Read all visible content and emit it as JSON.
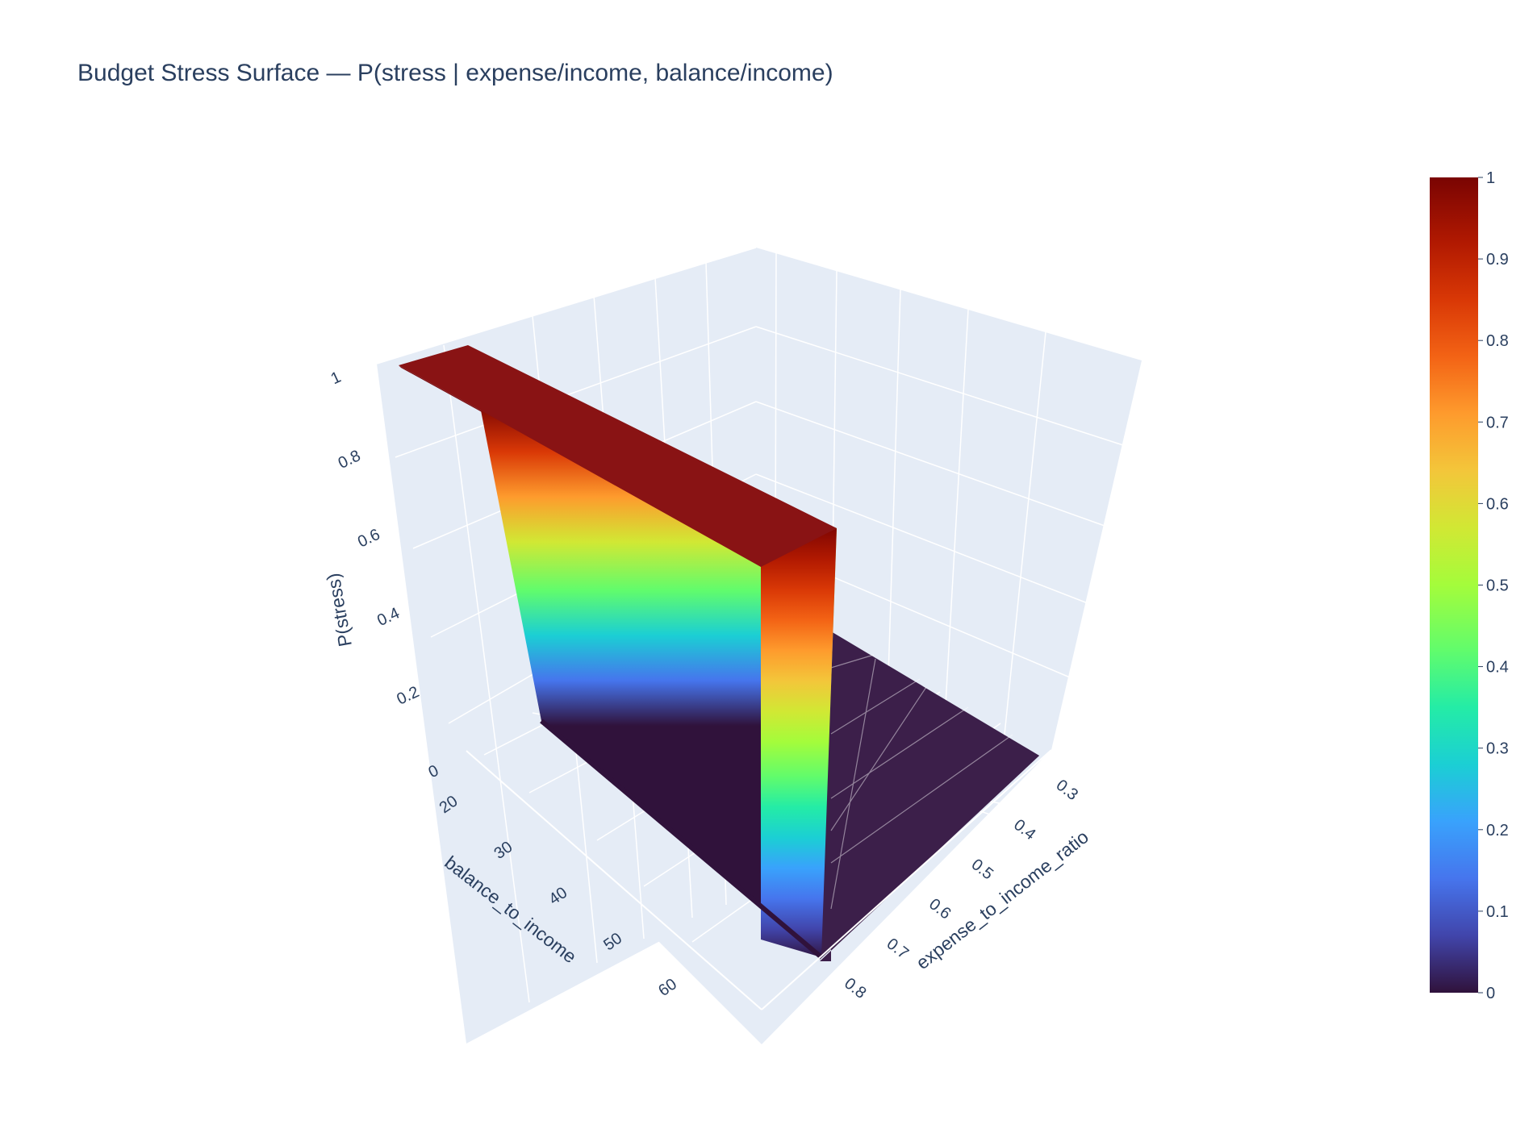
{
  "chart_data": {
    "type": "surface",
    "title": "Budget Stress Surface — P(stress | expense/income, balance/income)",
    "x_axis": {
      "label": "expense_to_income_ratio",
      "ticks": [
        0.3,
        0.4,
        0.5,
        0.6,
        0.7,
        0.8
      ],
      "range": [
        0.25,
        0.85
      ]
    },
    "y_axis": {
      "label": "balance_to_income",
      "ticks": [
        20,
        30,
        40,
        50,
        60
      ],
      "range": [
        18,
        70
      ]
    },
    "z_axis": {
      "label": "P(stress)",
      "ticks": [
        0,
        0.2,
        0.4,
        0.6,
        0.8,
        1
      ],
      "tick_labels": [
        "0",
        "0.2",
        "0.4",
        "0.6",
        "0.8",
        "1"
      ],
      "range": [
        0,
        1
      ]
    },
    "surface": {
      "description_grid": {
        "expense_to_income_ratio": [
          0.3,
          0.4,
          0.5,
          0.6,
          0.7,
          0.8,
          0.85
        ],
        "balance_to_income_values": [
          18,
          70
        ],
        "step_threshold_expense_ratio": 0.8,
        "z_below_threshold": 0,
        "z_above_threshold": 1
      }
    },
    "colorbar": {
      "ticks": [
        0,
        0.1,
        0.2,
        0.3,
        0.4,
        0.5,
        0.6,
        0.7,
        0.8,
        0.9,
        1
      ],
      "tick_labels": [
        "0",
        "0.1",
        "0.2",
        "0.3",
        "0.4",
        "0.5",
        "0.6",
        "0.7",
        "0.8",
        "0.9",
        "1"
      ],
      "range": [
        0,
        1
      ],
      "colorscale": "Turbo"
    },
    "colors": {
      "background": "#ffffff",
      "scene_bg": "#e5ecf6",
      "grid": "#ffffff",
      "text": "#2a3f5f",
      "top_face": "#891314",
      "floor_face": "#3c1f4a",
      "wall_bottom_edge": "#30123b"
    }
  }
}
